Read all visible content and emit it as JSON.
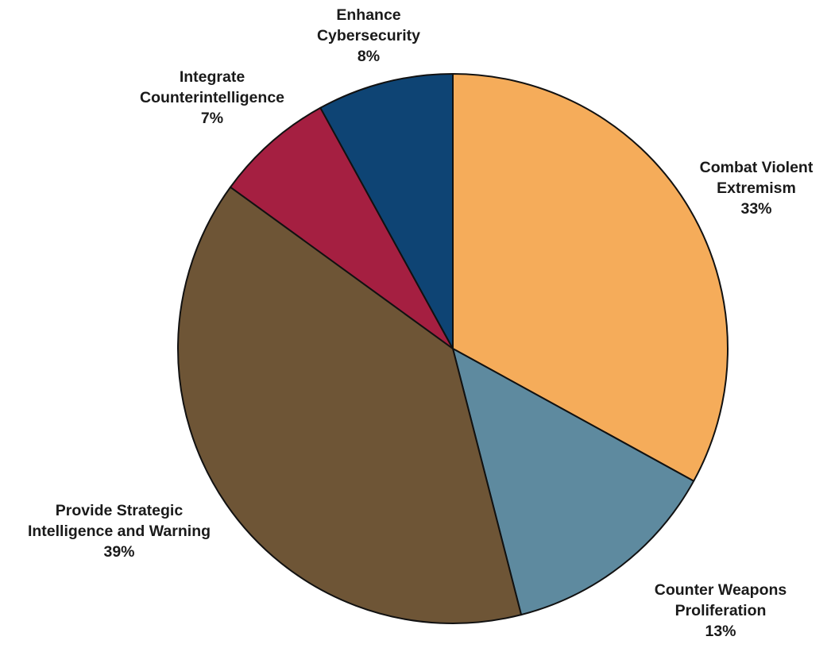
{
  "chart_data": {
    "type": "pie",
    "start": "12 o'clock",
    "direction": "clockwise",
    "slices": [
      {
        "label_lines": [
          "Combat Violent",
          "Extremism"
        ],
        "value": 33,
        "value_label": "33%",
        "color": "#F5AC5A"
      },
      {
        "label_lines": [
          "Counter Weapons",
          "Proliferation"
        ],
        "value": 13,
        "value_label": "13%",
        "color": "#5E8A9F"
      },
      {
        "label_lines": [
          "Provide Strategic",
          "Intelligence and Warning"
        ],
        "value": 39,
        "value_label": "39%",
        "color": "#6E5536"
      },
      {
        "label_lines": [
          "Integrate",
          "Counterintelligence"
        ],
        "value": 7,
        "value_label": "7%",
        "color": "#A51F41"
      },
      {
        "label_lines": [
          "Enhance",
          "Cybersecurity"
        ],
        "value": 8,
        "value_label": "8%",
        "color": "#0E4474"
      }
    ]
  }
}
